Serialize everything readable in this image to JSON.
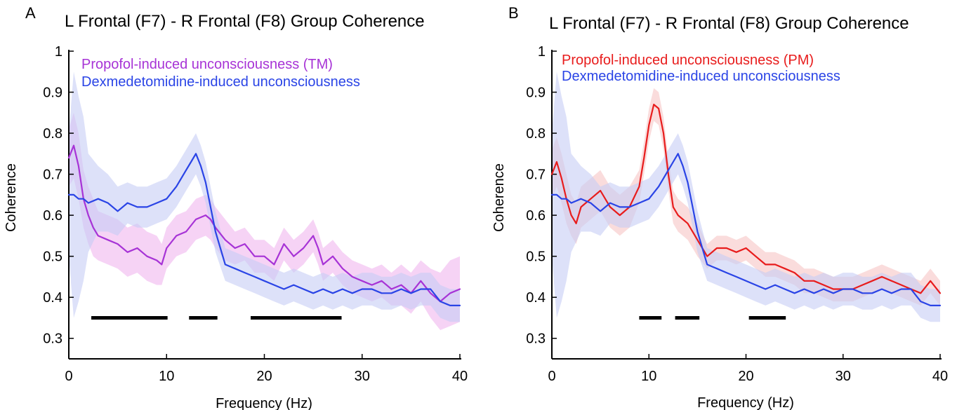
{
  "chart_data": [
    {
      "panel_label": "A",
      "type": "line",
      "title": "L Frontal (F7) - R Frontal (F8)  Group Coherence",
      "xlabel": "Frequency (Hz)",
      "ylabel": "Coherence",
      "xlim": [
        0,
        40
      ],
      "ylim": [
        0.25,
        1.0
      ],
      "xticks": [
        0,
        10,
        20,
        30,
        40
      ],
      "yticks": [
        0.3,
        0.4,
        0.5,
        0.6,
        0.7,
        0.8,
        0.9,
        1
      ],
      "ytick_labels": [
        "0.3",
        "0.4",
        "0.5",
        "0.6",
        "0.7",
        "0.8",
        "0.9",
        "1"
      ],
      "legend_position": "top-left",
      "series": [
        {
          "name": "Propofol-induced unconsciousness (TM)",
          "color": "#a733d6",
          "band_color": "#f0b6ee",
          "x": [
            0,
            0.5,
            1,
            1.5,
            2,
            2.5,
            3,
            4,
            5,
            6,
            7,
            8,
            9,
            9.5,
            10,
            11,
            12,
            13,
            14,
            14.5,
            15,
            16,
            17,
            18,
            19,
            20,
            21,
            22,
            23,
            24,
            25,
            25.5,
            26,
            27,
            28,
            29,
            30,
            31,
            32,
            33,
            34,
            35,
            36,
            37,
            38,
            39,
            40
          ],
          "y": [
            0.74,
            0.77,
            0.72,
            0.64,
            0.6,
            0.57,
            0.55,
            0.54,
            0.53,
            0.51,
            0.52,
            0.5,
            0.49,
            0.48,
            0.52,
            0.55,
            0.56,
            0.59,
            0.6,
            0.59,
            0.57,
            0.54,
            0.52,
            0.53,
            0.5,
            0.5,
            0.48,
            0.53,
            0.5,
            0.52,
            0.55,
            0.52,
            0.48,
            0.5,
            0.47,
            0.45,
            0.44,
            0.43,
            0.44,
            0.42,
            0.43,
            0.41,
            0.44,
            0.41,
            0.39,
            0.41,
            0.42
          ],
          "band": [
            0.07,
            0.08,
            0.08,
            0.07,
            0.07,
            0.07,
            0.06,
            0.06,
            0.06,
            0.06,
            0.06,
            0.06,
            0.06,
            0.05,
            0.05,
            0.05,
            0.05,
            0.05,
            0.05,
            0.05,
            0.05,
            0.05,
            0.04,
            0.04,
            0.04,
            0.04,
            0.04,
            0.04,
            0.04,
            0.04,
            0.04,
            0.04,
            0.04,
            0.04,
            0.04,
            0.04,
            0.04,
            0.04,
            0.04,
            0.04,
            0.05,
            0.05,
            0.05,
            0.06,
            0.07,
            0.08,
            0.08
          ]
        },
        {
          "name": "Dexmedetomidine-induced unconsciousness",
          "color": "#2a44e6",
          "band_color": "#c6cdf5",
          "x": [
            0,
            0.5,
            1,
            1.5,
            2,
            3,
            4,
            5,
            6,
            7,
            8,
            9,
            10,
            11,
            12,
            12.5,
            13,
            13.5,
            14,
            14.5,
            15,
            16,
            17,
            18,
            19,
            20,
            21,
            22,
            23,
            24,
            25,
            26,
            27,
            28,
            29,
            30,
            31,
            32,
            33,
            34,
            35,
            36,
            37,
            38,
            39,
            40
          ],
          "y": [
            0.65,
            0.65,
            0.64,
            0.64,
            0.63,
            0.64,
            0.63,
            0.61,
            0.63,
            0.62,
            0.62,
            0.63,
            0.64,
            0.67,
            0.71,
            0.73,
            0.75,
            0.72,
            0.68,
            0.62,
            0.56,
            0.48,
            0.47,
            0.46,
            0.45,
            0.44,
            0.43,
            0.42,
            0.43,
            0.42,
            0.41,
            0.42,
            0.41,
            0.42,
            0.41,
            0.42,
            0.42,
            0.41,
            0.41,
            0.42,
            0.41,
            0.42,
            0.42,
            0.39,
            0.38,
            0.38
          ],
          "band": [
            0.15,
            0.3,
            0.25,
            0.2,
            0.12,
            0.08,
            0.07,
            0.06,
            0.05,
            0.05,
            0.05,
            0.05,
            0.05,
            0.05,
            0.05,
            0.05,
            0.05,
            0.05,
            0.05,
            0.05,
            0.05,
            0.04,
            0.04,
            0.04,
            0.04,
            0.04,
            0.04,
            0.04,
            0.04,
            0.04,
            0.04,
            0.04,
            0.04,
            0.04,
            0.04,
            0.04,
            0.04,
            0.04,
            0.04,
            0.04,
            0.04,
            0.04,
            0.04,
            0.04,
            0.04,
            0.04
          ]
        }
      ],
      "significance_bars": [
        [
          2.3,
          10.1
        ],
        [
          12.3,
          15.2
        ],
        [
          18.6,
          27.9
        ]
      ]
    },
    {
      "panel_label": "B",
      "type": "line",
      "title": "L Frontal (F7) - R Frontal (F8)  Group Coherence",
      "xlabel": "Frequency (Hz)",
      "ylabel": "Coherence",
      "xlim": [
        0,
        40
      ],
      "ylim": [
        0.25,
        1.0
      ],
      "xticks": [
        0,
        10,
        20,
        30,
        40
      ],
      "yticks": [
        0.3,
        0.4,
        0.5,
        0.6,
        0.7,
        0.8,
        0.9,
        1
      ],
      "ytick_labels": [
        "0.3",
        "0.4",
        "0.5",
        "0.6",
        "0.7",
        "0.8",
        "0.9",
        "1"
      ],
      "legend_position": "top-left",
      "series": [
        {
          "name": "Propofol-induced unconsciousness (PM)",
          "color": "#e81c1c",
          "band_color": "#f7c4c4",
          "x": [
            0,
            0.5,
            1,
            1.5,
            2,
            2.5,
            3,
            4,
            5,
            6,
            7,
            8,
            9,
            9.5,
            10,
            10.5,
            11,
            11.5,
            12,
            12.5,
            13,
            14,
            15,
            16,
            17,
            18,
            19,
            20,
            21,
            22,
            23,
            24,
            25,
            26,
            27,
            28,
            29,
            30,
            31,
            32,
            33,
            34,
            35,
            36,
            37,
            38,
            39,
            40
          ],
          "y": [
            0.7,
            0.73,
            0.69,
            0.64,
            0.6,
            0.58,
            0.62,
            0.64,
            0.66,
            0.62,
            0.6,
            0.62,
            0.67,
            0.74,
            0.82,
            0.87,
            0.86,
            0.8,
            0.7,
            0.62,
            0.6,
            0.58,
            0.54,
            0.5,
            0.52,
            0.52,
            0.51,
            0.52,
            0.5,
            0.48,
            0.48,
            0.47,
            0.46,
            0.44,
            0.44,
            0.43,
            0.42,
            0.42,
            0.42,
            0.43,
            0.44,
            0.45,
            0.44,
            0.43,
            0.42,
            0.41,
            0.44,
            0.41
          ],
          "band": [
            0.06,
            0.06,
            0.06,
            0.06,
            0.05,
            0.05,
            0.05,
            0.05,
            0.05,
            0.05,
            0.05,
            0.05,
            0.04,
            0.04,
            0.04,
            0.04,
            0.04,
            0.04,
            0.04,
            0.04,
            0.04,
            0.04,
            0.04,
            0.03,
            0.03,
            0.03,
            0.03,
            0.03,
            0.03,
            0.03,
            0.03,
            0.03,
            0.03,
            0.03,
            0.03,
            0.03,
            0.03,
            0.03,
            0.03,
            0.03,
            0.03,
            0.03,
            0.03,
            0.03,
            0.03,
            0.03,
            0.03,
            0.03
          ]
        },
        {
          "name": "Dexmedetomidine-induced unconsciousness",
          "color": "#2a44e6",
          "band_color": "#c6cdf5",
          "x": [
            0,
            0.5,
            1,
            1.5,
            2,
            3,
            4,
            5,
            6,
            7,
            8,
            9,
            10,
            11,
            12,
            12.5,
            13,
            13.5,
            14,
            14.5,
            15,
            16,
            17,
            18,
            19,
            20,
            21,
            22,
            23,
            24,
            25,
            26,
            27,
            28,
            29,
            30,
            31,
            32,
            33,
            34,
            35,
            36,
            37,
            38,
            39,
            40
          ],
          "y": [
            0.65,
            0.65,
            0.64,
            0.64,
            0.63,
            0.64,
            0.63,
            0.61,
            0.63,
            0.62,
            0.62,
            0.63,
            0.64,
            0.67,
            0.71,
            0.73,
            0.75,
            0.72,
            0.68,
            0.62,
            0.56,
            0.48,
            0.47,
            0.46,
            0.45,
            0.44,
            0.43,
            0.42,
            0.43,
            0.42,
            0.41,
            0.42,
            0.41,
            0.42,
            0.41,
            0.42,
            0.42,
            0.41,
            0.41,
            0.42,
            0.41,
            0.42,
            0.42,
            0.39,
            0.38,
            0.38
          ],
          "band": [
            0.15,
            0.3,
            0.25,
            0.2,
            0.12,
            0.08,
            0.07,
            0.06,
            0.05,
            0.05,
            0.05,
            0.05,
            0.05,
            0.05,
            0.05,
            0.05,
            0.05,
            0.05,
            0.05,
            0.05,
            0.05,
            0.04,
            0.04,
            0.04,
            0.04,
            0.04,
            0.04,
            0.04,
            0.04,
            0.04,
            0.04,
            0.04,
            0.04,
            0.04,
            0.04,
            0.04,
            0.04,
            0.04,
            0.04,
            0.04,
            0.04,
            0.04,
            0.04,
            0.04,
            0.04,
            0.04
          ]
        }
      ],
      "significance_bars": [
        [
          9.0,
          11.3
        ],
        [
          12.7,
          15.2
        ],
        [
          20.3,
          24.1
        ]
      ]
    }
  ]
}
